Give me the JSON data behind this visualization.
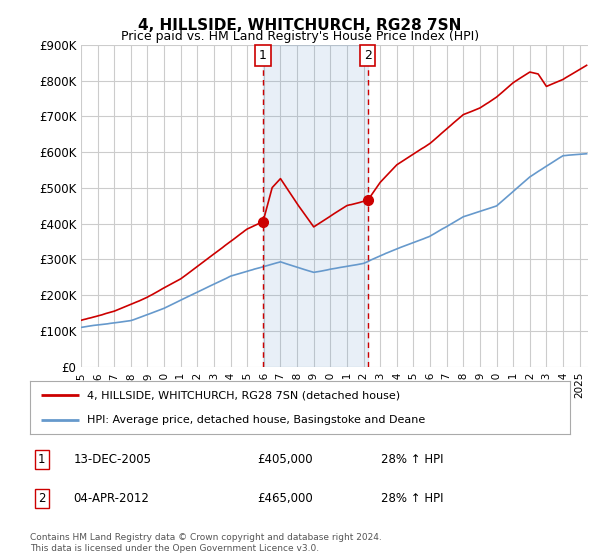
{
  "title": "4, HILLSIDE, WHITCHURCH, RG28 7SN",
  "subtitle": "Price paid vs. HM Land Registry's House Price Index (HPI)",
  "ylim": [
    0,
    900000
  ],
  "yticks": [
    0,
    100000,
    200000,
    300000,
    400000,
    500000,
    600000,
    700000,
    800000,
    900000
  ],
  "ytick_labels": [
    "£0",
    "£100K",
    "£200K",
    "£300K",
    "£400K",
    "£500K",
    "£600K",
    "£700K",
    "£800K",
    "£900K"
  ],
  "xlim_start": 1995.0,
  "xlim_end": 2025.5,
  "line_color_red": "#cc0000",
  "line_color_blue": "#6699cc",
  "transaction1_x": 2005.95,
  "transaction1_y": 405000,
  "transaction2_x": 2012.25,
  "transaction2_y": 465000,
  "transaction1_label": "1",
  "transaction2_label": "2",
  "legend_entry1": "4, HILLSIDE, WHITCHURCH, RG28 7SN (detached house)",
  "legend_entry2": "HPI: Average price, detached house, Basingstoke and Deane",
  "table_row1": [
    "1",
    "13-DEC-2005",
    "£405,000",
    "28% ↑ HPI"
  ],
  "table_row2": [
    "2",
    "04-APR-2012",
    "£465,000",
    "28% ↑ HPI"
  ],
  "footer": "Contains HM Land Registry data © Crown copyright and database right 2024.\nThis data is licensed under the Open Government Licence v3.0.",
  "background_color": "#ffffff",
  "grid_color": "#cccccc",
  "hpi_anchors_x": [
    1995.0,
    1998.0,
    2000.0,
    2002.0,
    2004.0,
    2007.0,
    2009.0,
    2012.0,
    2014.0,
    2016.0,
    2018.0,
    2020.0,
    2022.0,
    2024.0,
    2025.4
  ],
  "hpi_anchors_y": [
    110000,
    130000,
    165000,
    210000,
    255000,
    295000,
    265000,
    290000,
    330000,
    365000,
    420000,
    450000,
    530000,
    590000,
    595000
  ],
  "red_anchors_x": [
    1995.0,
    1997.0,
    1999.0,
    2001.0,
    2003.0,
    2005.0,
    2005.95,
    2006.5,
    2007.0,
    2008.0,
    2009.0,
    2010.0,
    2011.0,
    2012.25,
    2013.0,
    2014.0,
    2015.0,
    2016.0,
    2017.0,
    2018.0,
    2019.0,
    2020.0,
    2021.0,
    2022.0,
    2022.5,
    2023.0,
    2024.0,
    2025.4
  ],
  "red_anchors_y": [
    130000,
    155000,
    195000,
    245000,
    315000,
    385000,
    405000,
    500000,
    525000,
    455000,
    390000,
    420000,
    450000,
    465000,
    515000,
    565000,
    595000,
    625000,
    665000,
    705000,
    725000,
    755000,
    795000,
    825000,
    820000,
    785000,
    805000,
    845000
  ]
}
